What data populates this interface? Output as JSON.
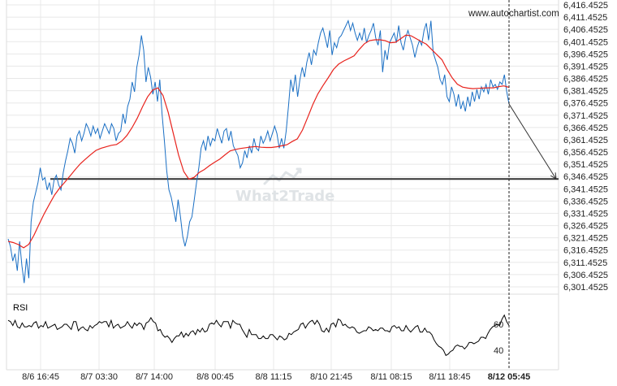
{
  "site_credit": "www.autochartist.com",
  "logo_text": "What2Trade",
  "colors": {
    "price": "#1a6fc4",
    "moving_average": "#e8231d",
    "support_line": "#333333",
    "grid": "#e8e8e8",
    "forecast_arrow": "#333333",
    "rsi": "#000000"
  },
  "chart_data": [
    {
      "type": "line",
      "y_ticks": [
        "6,416.4525",
        "6,411.4525",
        "6,406.4525",
        "6,401.4525",
        "6,396.4525",
        "6,391.4525",
        "6,386.4525",
        "6,381.4525",
        "6,376.4525",
        "6,371.4525",
        "6,366.4525",
        "6,361.4525",
        "6,356.4525",
        "6,351.4525",
        "6,346.4525",
        "6,341.4525",
        "6,336.4525",
        "6,331.4525",
        "6,326.4525",
        "6,321.4525",
        "6,316.4525",
        "6,311.4525",
        "6,306.4525",
        "6,301.4525"
      ],
      "ylim": [
        6299.5,
        6417.5
      ],
      "x_ticks": [
        "8/6 16:45",
        "8/7 03:30",
        "8/7 14:00",
        "8/8 00:45",
        "8/8 11:15",
        "8/10 21:45",
        "8/11 08:15",
        "8/11 18:45",
        "8/12 05:45"
      ],
      "current_time_label": "8/12 05:45",
      "grid": true,
      "support_level": 6345.4525,
      "forecast_target": 6345.4525,
      "series": [
        {
          "kind": "price",
          "values": [
            6321,
            6318,
            6312,
            6315,
            6308,
            6320,
            6310,
            6303,
            6313,
            6305,
            6328,
            6336,
            6340,
            6344,
            6350,
            6345,
            6346,
            6341,
            6344,
            6339,
            6345,
            6347,
            6343,
            6341,
            6348,
            6353,
            6357,
            6362,
            6360,
            6356,
            6363,
            6365,
            6361,
            6364,
            6368,
            6366,
            6363,
            6367,
            6364,
            6366,
            6362,
            6365,
            6368,
            6366,
            6364,
            6368,
            6366,
            6361,
            6364,
            6365,
            6372,
            6368,
            6375,
            6378,
            6385,
            6381,
            6391,
            6396,
            6404,
            6398,
            6385,
            6391,
            6387,
            6380,
            6385,
            6377,
            6386,
            6372,
            6361,
            6349,
            6341,
            6338,
            6333,
            6328,
            6337,
            6330,
            6322,
            6318,
            6322,
            6328,
            6330,
            6337,
            6344,
            6350,
            6358,
            6361,
            6357,
            6363,
            6359,
            6362,
            6361,
            6366,
            6363,
            6360,
            6365,
            6366,
            6361,
            6365,
            6359,
            6357,
            6355,
            6350,
            6352,
            6357,
            6354,
            6359,
            6356,
            6362,
            6358,
            6357,
            6363,
            6360,
            6362,
            6365,
            6361,
            6364,
            6367,
            6364,
            6358,
            6362,
            6358,
            6365,
            6375,
            6386,
            6381,
            6388,
            6379,
            6386,
            6391,
            6387,
            6393,
            6397,
            6392,
            6398,
            6396,
            6401,
            6405,
            6407,
            6403,
            6399,
            6406,
            6396,
            6401,
            6399,
            6403,
            6404,
            6406,
            6408,
            6410,
            6406,
            6409,
            6405,
            6402,
            6405,
            6402,
            6407,
            6401,
            6404,
            6406,
            6409,
            6403,
            6400,
            6406,
            6389,
            6398,
            6394,
            6401,
            6403,
            6405,
            6401,
            6408,
            6401,
            6398,
            6403,
            6406,
            6403,
            6400,
            6395,
            6399,
            6402,
            6400,
            6406,
            6409,
            6402,
            6410,
            6397,
            6394,
            6391,
            6386,
            6384,
            6388,
            6379,
            6377,
            6383,
            6380,
            6375,
            6380,
            6374,
            6377,
            6373,
            6379,
            6375,
            6381,
            6377,
            6382,
            6378,
            6383,
            6381,
            6384,
            6380,
            6386,
            6383,
            6384,
            6382,
            6385,
            6384,
            6388,
            6381,
            6376
          ]
        },
        {
          "kind": "moving_average",
          "values": [
            6320,
            6319.5,
            6318.7,
            6317.4,
            6318.8,
            6322.5,
            6327,
            6331.3,
            6335.2,
            6338.9,
            6341.8,
            6344.2,
            6346.7,
            6349.3,
            6351.7,
            6353.6,
            6355.4,
            6357.1,
            6358,
            6358.6,
            6359.2,
            6359.5,
            6360.9,
            6363.2,
            6366.4,
            6370.2,
            6374.8,
            6378.9,
            6381.7,
            6382.6,
            6379.5,
            6372.6,
            6364,
            6355.3,
            6348.5,
            6345.4,
            6346.1,
            6348.1,
            6349.3,
            6350.9,
            6352.3,
            6353.6,
            6355.3,
            6356.9,
            6357.5,
            6357.9,
            6358.2,
            6358.5,
            6358.7,
            6358.4,
            6358.3,
            6358.3,
            6358.6,
            6359,
            6359.4,
            6360.7,
            6361.8,
            6365.4,
            6370.5,
            6375.8,
            6380.2,
            6383.6,
            6386.8,
            6390.1,
            6392.3,
            6393.6,
            6394.6,
            6395.7,
            6398.3,
            6400.6,
            6401.9,
            6402.2,
            6402.2,
            6401.9,
            6401,
            6401.2,
            6402.6,
            6404.1,
            6403.9,
            6402.7,
            6401.5,
            6400.4,
            6398.3,
            6396.2,
            6394.1,
            6390.1,
            6386.7,
            6384.1,
            6382.9,
            6382.5,
            6382.3,
            6382.4,
            6382.5,
            6382.6,
            6382.6,
            6383.1,
            6383.4,
            6382.8
          ]
        }
      ],
      "rsi": {
        "label": "RSI",
        "y_ticks": [
          "60",
          "40"
        ],
        "ylim": [
          34,
          70
        ],
        "values": [
          63,
          62,
          59,
          63,
          58,
          57,
          61,
          58,
          58,
          59,
          58,
          61,
          62,
          57,
          59,
          58,
          62,
          57,
          58,
          59,
          60,
          56,
          57,
          58,
          60,
          60,
          58,
          56,
          62,
          62,
          55,
          57,
          58,
          56,
          55,
          59,
          57,
          59,
          60,
          62,
          61,
          62,
          62,
          58,
          63,
          57,
          59,
          60,
          57,
          58,
          59,
          62,
          59,
          57,
          61,
          59,
          61,
          60,
          56,
          61,
          62,
          65,
          62,
          61,
          55,
          56,
          52,
          50,
          51,
          49,
          46,
          49,
          51,
          51,
          54,
          50,
          53,
          51,
          54,
          55,
          52,
          56,
          54,
          57,
          54,
          55,
          60,
          61,
          60,
          63,
          60,
          58,
          62,
          62,
          62,
          57,
          63,
          61,
          60,
          60,
          56,
          53,
          50,
          56,
          52,
          52,
          52,
          49,
          49,
          51,
          49,
          49,
          52,
          52,
          50,
          48,
          51,
          50,
          48,
          49,
          53,
          52,
          54,
          55,
          56,
          60,
          61,
          57,
          60,
          62,
          63,
          60,
          63,
          60,
          55,
          54,
          57,
          54,
          60,
          61,
          58,
          64,
          63,
          59,
          60,
          58,
          57,
          58,
          57,
          54,
          53,
          54,
          55,
          55,
          58,
          57,
          55,
          56,
          55,
          57,
          57,
          55,
          55,
          54,
          58,
          59,
          57,
          58,
          55,
          55,
          59,
          56,
          54,
          56,
          58,
          59,
          54,
          54,
          57,
          54,
          54,
          52,
          48,
          45,
          43,
          42,
          40,
          36,
          37,
          39,
          40,
          43,
          44,
          43,
          43,
          41,
          43,
          46,
          46,
          45,
          46,
          47,
          50,
          50,
          49,
          53,
          56,
          58,
          59,
          60,
          59,
          64,
          67,
          62,
          59
        ]
      }
    }
  ]
}
